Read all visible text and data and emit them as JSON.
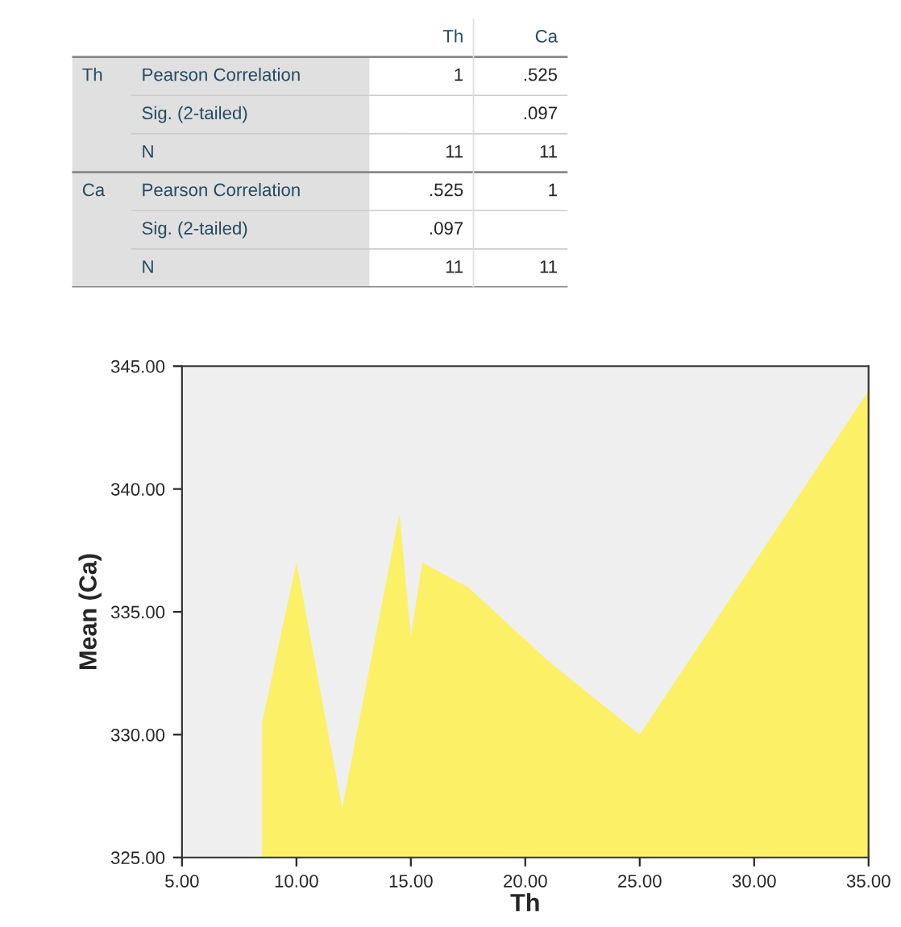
{
  "chart_data": [
    {
      "type": "other",
      "cell_labels": [
        [
          null,
          null,
          "Th",
          "Ca"
        ],
        [
          "Th",
          "Pearson Correlation",
          "1",
          ".525"
        ],
        [
          null,
          "Sig. (2-tailed)",
          null,
          ".097"
        ],
        [
          null,
          "N",
          "11",
          "11"
        ],
        [
          "Ca",
          "Pearson Correlation",
          ".525",
          "1"
        ],
        [
          null,
          "Sig. (2-tailed)",
          ".097",
          null
        ],
        [
          null,
          "N",
          "11",
          "11"
        ]
      ]
    },
    {
      "type": "area",
      "xlabel": "Th",
      "ylabel": "Mean (Ca)",
      "x": [
        8.5,
        10,
        12,
        14.5,
        15,
        15.5,
        17.5,
        21,
        25,
        35
      ],
      "series": [
        {
          "color": "#fcf066",
          "values": [
            330.5,
            337,
            327,
            339,
            334,
            337,
            336,
            333,
            330,
            344
          ]
        }
      ],
      "xlim": [
        5,
        35
      ],
      "xticks": [
        {
          "value": 5,
          "label": "5.00"
        },
        {
          "value": 10,
          "label": "10.00"
        },
        {
          "value": 15,
          "label": "15.00"
        },
        {
          "value": 20,
          "label": "20.00"
        },
        {
          "value": 25,
          "label": "25.00"
        },
        {
          "value": 30,
          "label": "30.00"
        },
        {
          "value": 35,
          "label": "35.00"
        }
      ],
      "ylim": [
        325,
        345
      ],
      "yticks": [
        {
          "value": 325,
          "label": "325.00"
        },
        {
          "value": 330,
          "label": "330.00"
        },
        {
          "value": 335,
          "label": "335.00"
        },
        {
          "value": 340,
          "label": "340.00"
        },
        {
          "value": 345,
          "label": "345.00"
        }
      ],
      "grid": false
    }
  ]
}
